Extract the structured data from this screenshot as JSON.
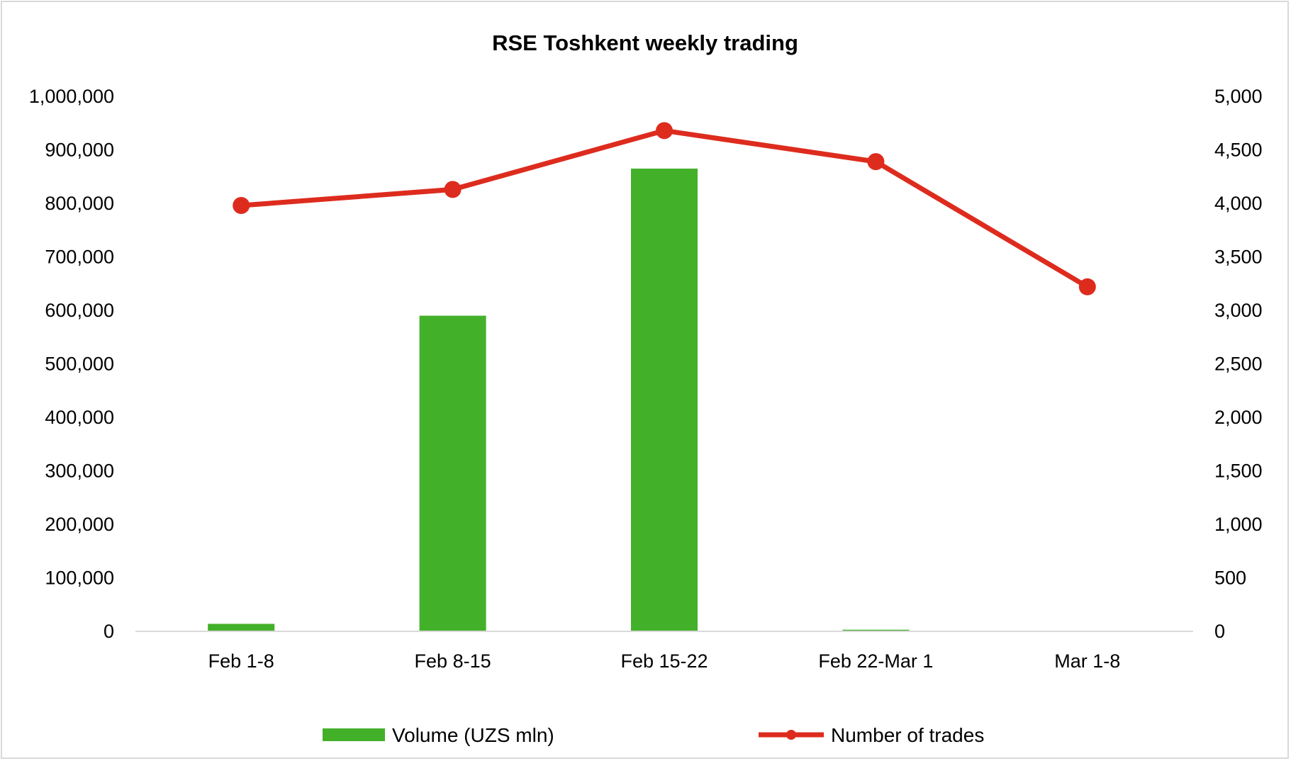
{
  "chart_data": {
    "type": "bar+line",
    "title": "RSE Toshkent weekly trading",
    "categories": [
      "Feb 1-8",
      "Feb 8-15",
      "Feb 15-22",
      "Feb 22-Mar 1",
      "Mar 1-8"
    ],
    "series": [
      {
        "name": "Volume (UZS mln)",
        "type": "bar",
        "axis": "left",
        "color": "#43b02a",
        "values": [
          14000,
          590000,
          865000,
          3000,
          0
        ]
      },
      {
        "name": "Number of trades",
        "type": "line",
        "axis": "right",
        "color": "#dd2c1e",
        "values": [
          3980,
          4130,
          4680,
          4390,
          3220
        ]
      }
    ],
    "y_left": {
      "lim": [
        0,
        1000000
      ],
      "ticks": [
        "0",
        "100,000",
        "200,000",
        "300,000",
        "400,000",
        "500,000",
        "600,000",
        "700,000",
        "800,000",
        "900,000",
        "1,000,000"
      ]
    },
    "y_right": {
      "lim": [
        0,
        5000
      ],
      "ticks": [
        "0",
        "500",
        "1,000",
        "1,500",
        "2,000",
        "2,500",
        "3,000",
        "3,500",
        "4,000",
        "4,500",
        "5,000"
      ]
    },
    "grid": false,
    "legend_position": "bottom"
  }
}
